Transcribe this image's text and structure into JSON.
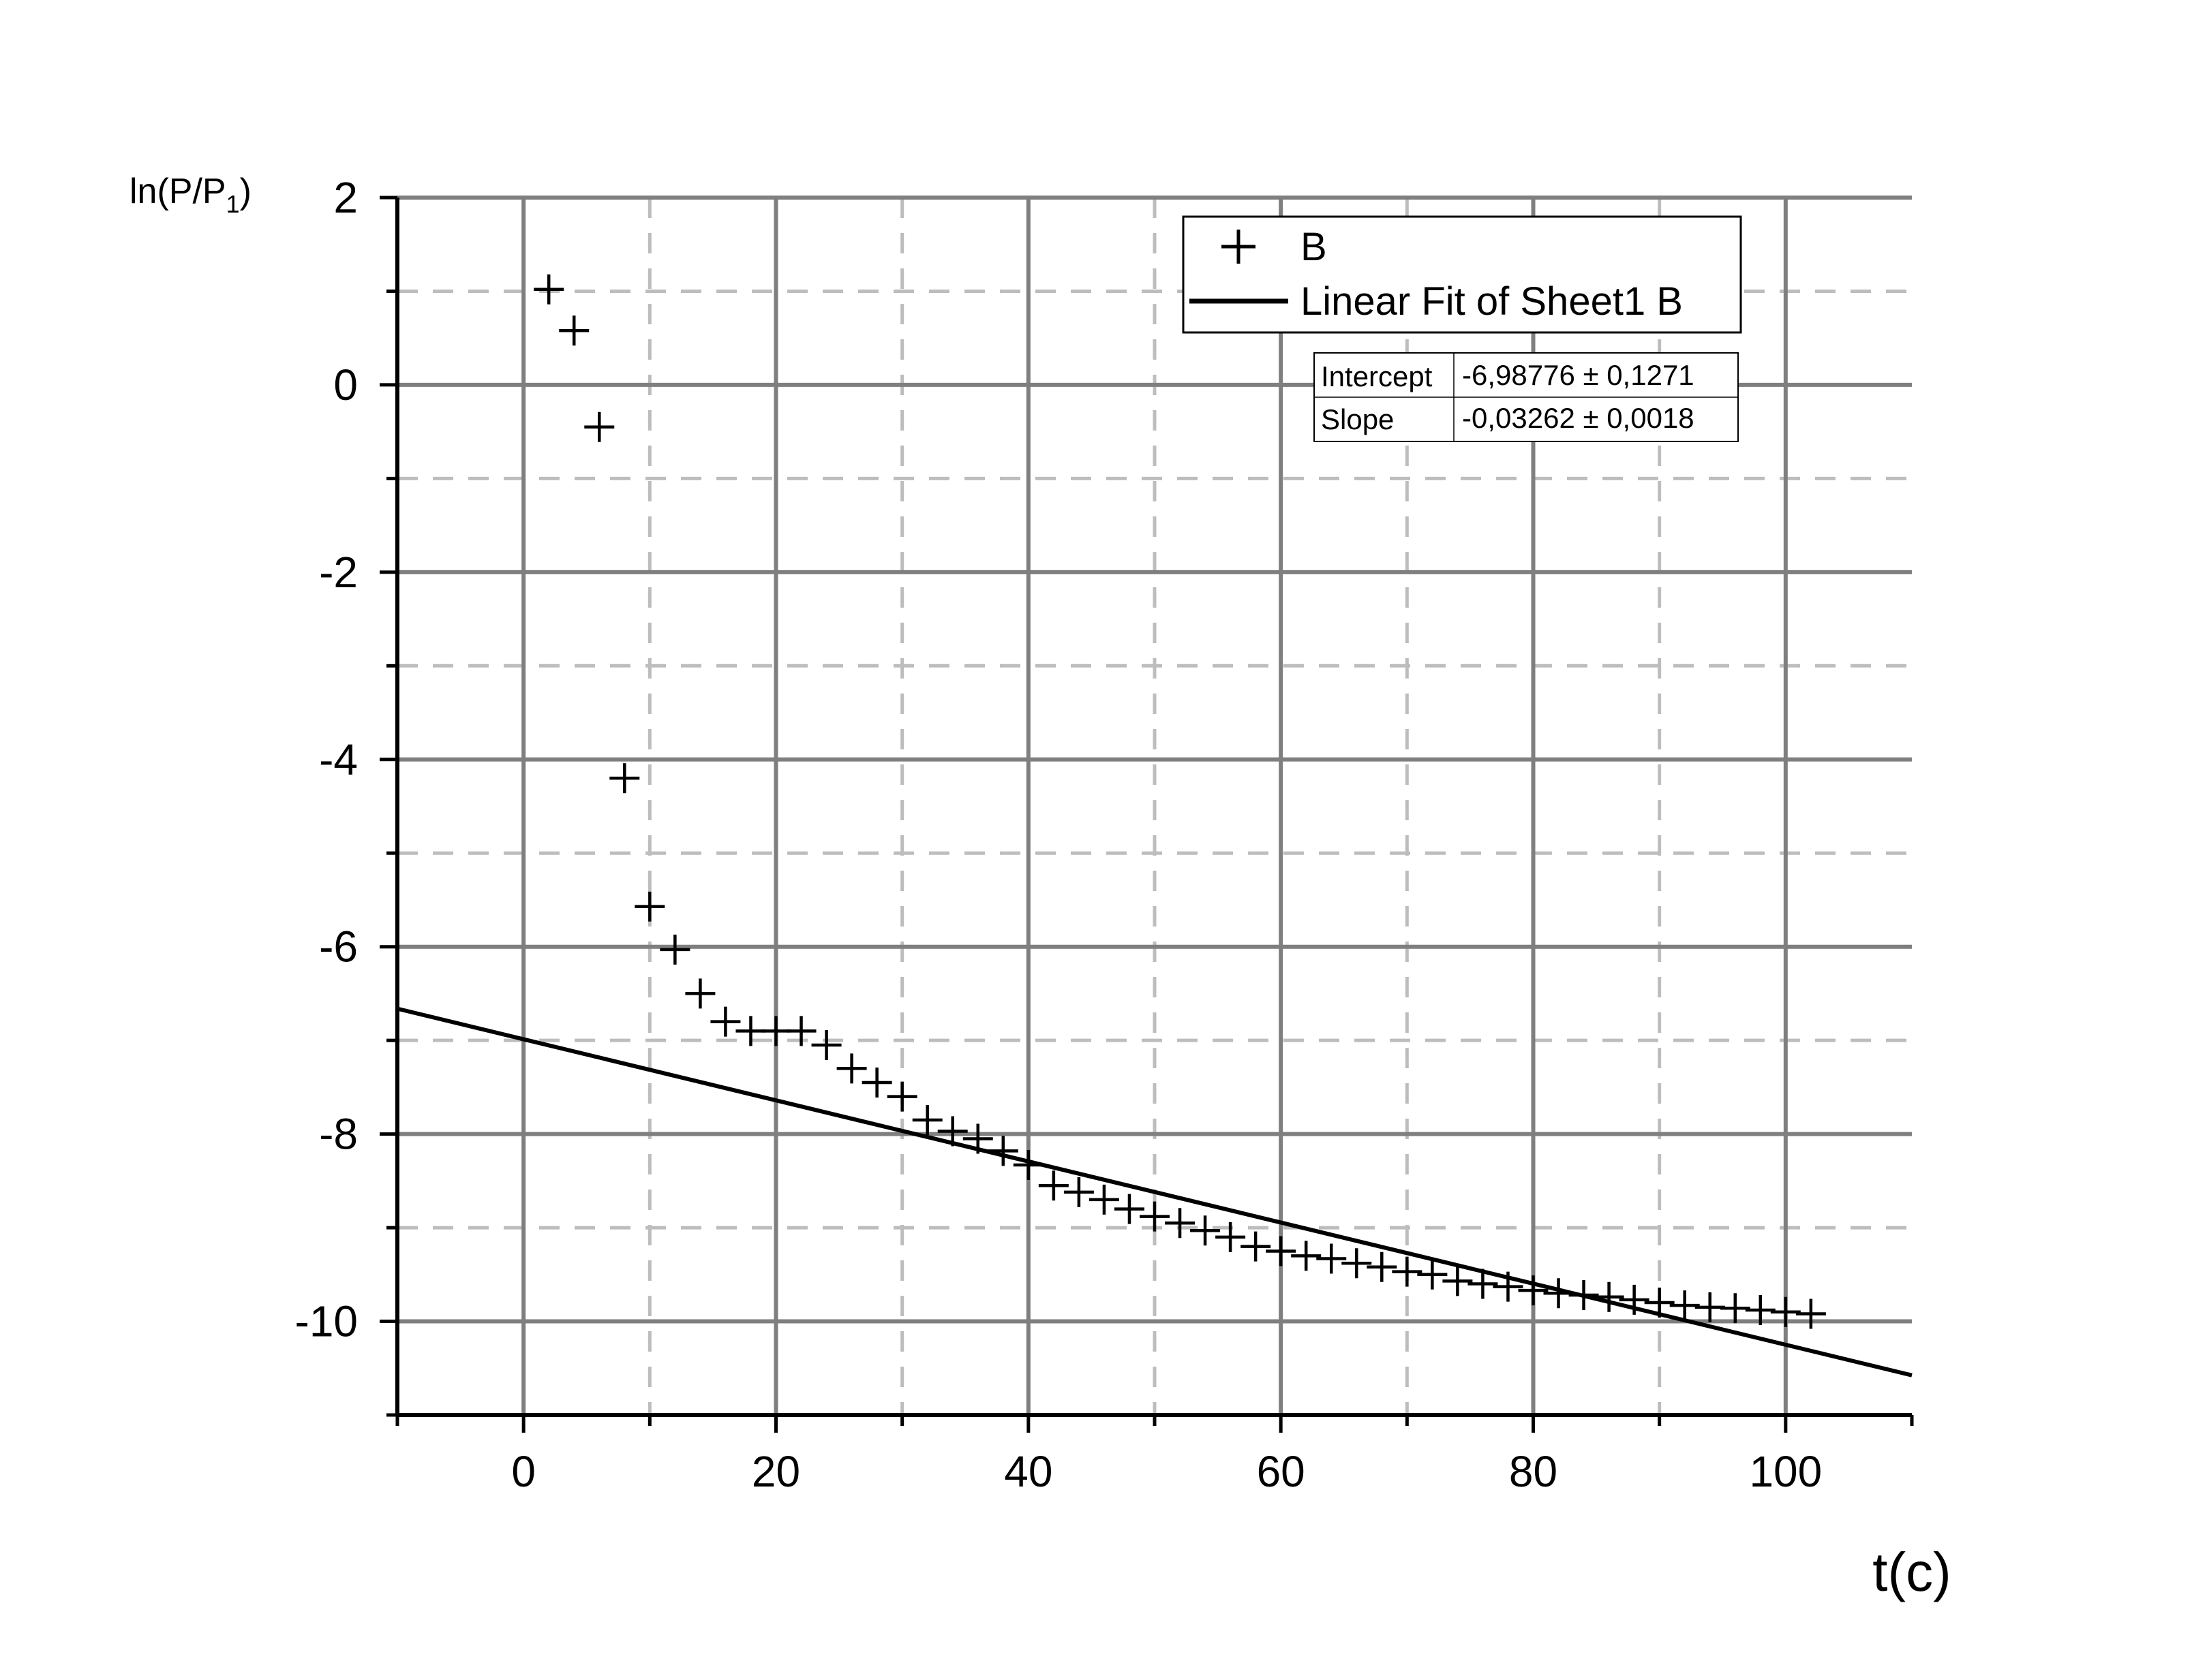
{
  "chart_data": {
    "type": "scatter",
    "ylabel_main": "ln(P/P",
    "ylabel_sub": "1",
    "ylabel_close": ")",
    "xlabel": "t(c)",
    "xlim": [
      -10,
      110
    ],
    "ylim": [
      -11,
      2
    ],
    "x_ticks": [
      0,
      20,
      40,
      60,
      80,
      100
    ],
    "y_ticks": [
      2,
      0,
      -2,
      -4,
      -6,
      -8,
      -10
    ],
    "y_tick_labels": [
      "2",
      "0",
      "-2",
      "-4",
      "-6",
      "-8",
      "-10"
    ],
    "x_minor_dashed": [
      10,
      30,
      50,
      70,
      90
    ],
    "y_minor_dashed": [
      1,
      -1,
      -3,
      -5,
      -7,
      -9
    ],
    "grid": true,
    "legend_position": "top-right",
    "series": [
      {
        "name": "B",
        "marker": "plus",
        "x": [
          2,
          4,
          6,
          8,
          10,
          12,
          14,
          16,
          18,
          20,
          22,
          24,
          26,
          28,
          30,
          32,
          34,
          36,
          38,
          40,
          42,
          44,
          46,
          48,
          50,
          52,
          54,
          56,
          58,
          60,
          62,
          64,
          66,
          68,
          70,
          72,
          74,
          76,
          78,
          80,
          82,
          84,
          86,
          88,
          90,
          92,
          94,
          96,
          98,
          100,
          102
        ],
        "y": [
          1.02,
          0.58,
          -0.45,
          -4.2,
          -5.57,
          -6.03,
          -6.5,
          -6.8,
          -6.9,
          -6.9,
          -6.9,
          -7.05,
          -7.3,
          -7.45,
          -7.6,
          -7.85,
          -7.97,
          -8.05,
          -8.18,
          -8.33,
          -8.55,
          -8.62,
          -8.7,
          -8.8,
          -8.88,
          -8.95,
          -9.03,
          -9.1,
          -9.2,
          -9.25,
          -9.3,
          -9.33,
          -9.38,
          -9.42,
          -9.47,
          -9.5,
          -9.57,
          -9.6,
          -9.63,
          -9.67,
          -9.7,
          -9.72,
          -9.74,
          -9.77,
          -9.8,
          -9.83,
          -9.85,
          -9.86,
          -9.88,
          -9.9,
          -9.92
        ]
      },
      {
        "name": "Linear Fit of Sheet1 B",
        "type": "line",
        "intercept": -6.98776,
        "slope": -0.03262,
        "x_range": [
          -10,
          110
        ]
      }
    ],
    "fit_stats": {
      "rows": [
        {
          "label": "Intercept",
          "value": "-6,98776 ± 0,1271"
        },
        {
          "label": "Slope",
          "value": "-0,03262 ± 0,0018"
        }
      ]
    }
  }
}
